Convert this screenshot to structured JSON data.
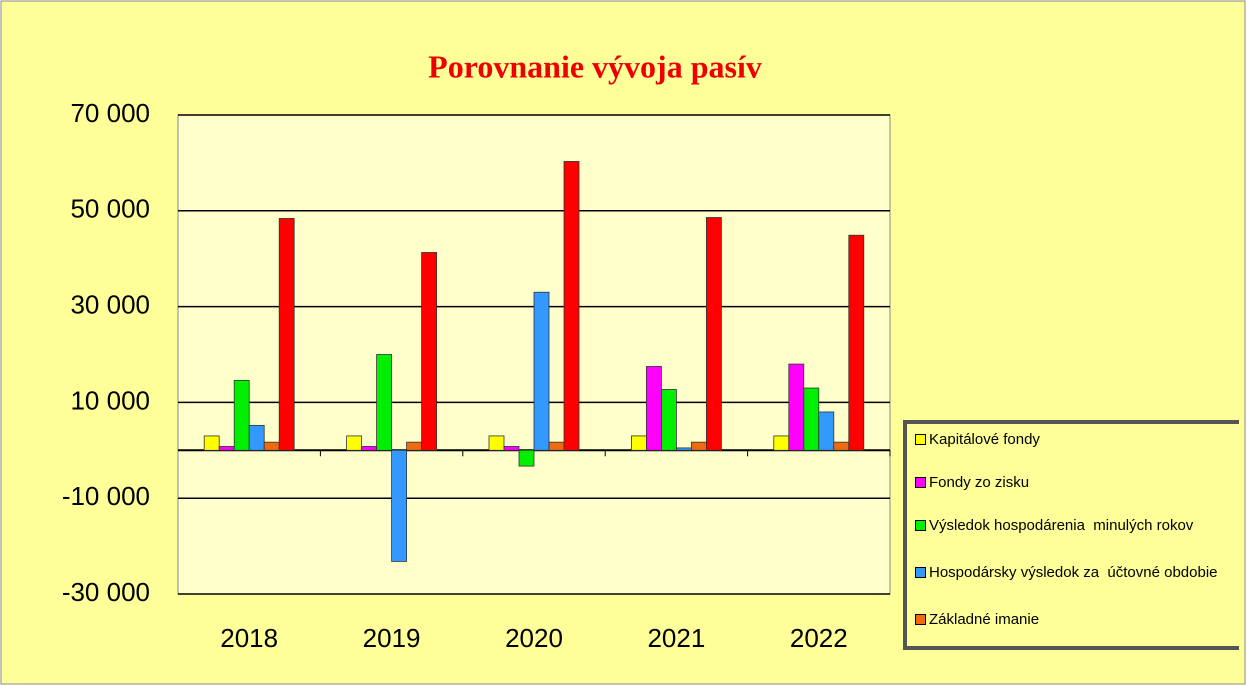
{
  "chart_data": {
    "type": "bar",
    "title": "Porovnanie vývoja pasív",
    "categories": [
      "2018",
      "2019",
      "2020",
      "2021",
      "2022"
    ],
    "series": [
      {
        "name": "Kapitálové fondy",
        "color": "#ffff00",
        "values": [
          3000,
          3000,
          3000,
          3000,
          3000
        ]
      },
      {
        "name": "Fondy zo zisku",
        "color": "#ff00ff",
        "values": [
          800,
          800,
          800,
          17500,
          18000
        ]
      },
      {
        "name": "Výsledok hospodárenia  minulých rokov",
        "color": "#00ee00",
        "values": [
          14600,
          20000,
          -3300,
          12700,
          13000
        ]
      },
      {
        "name": "Hospodársky výsledok za  účtovné obdobie",
        "color": "#3399ff",
        "values": [
          5200,
          -23200,
          33000,
          500,
          8000
        ]
      },
      {
        "name": "Základné imanie",
        "color": "#ee6a10",
        "values": [
          1700,
          1700,
          1700,
          1700,
          1700
        ]
      },
      {
        "name": null,
        "color": "#ff0000",
        "values": [
          48400,
          41300,
          60300,
          48600,
          44900
        ]
      }
    ],
    "ylim": [
      -30000,
      70000
    ],
    "yticks": [
      {
        "value": -30000,
        "label": "-30 000"
      },
      {
        "value": -10000,
        "label": "-10 000"
      },
      {
        "value": 10000,
        "label": "10 000"
      },
      {
        "value": 30000,
        "label": "30 000"
      },
      {
        "value": 50000,
        "label": "50 000"
      },
      {
        "value": 70000,
        "label": "70 000"
      }
    ],
    "grid": true,
    "legend": "right"
  }
}
